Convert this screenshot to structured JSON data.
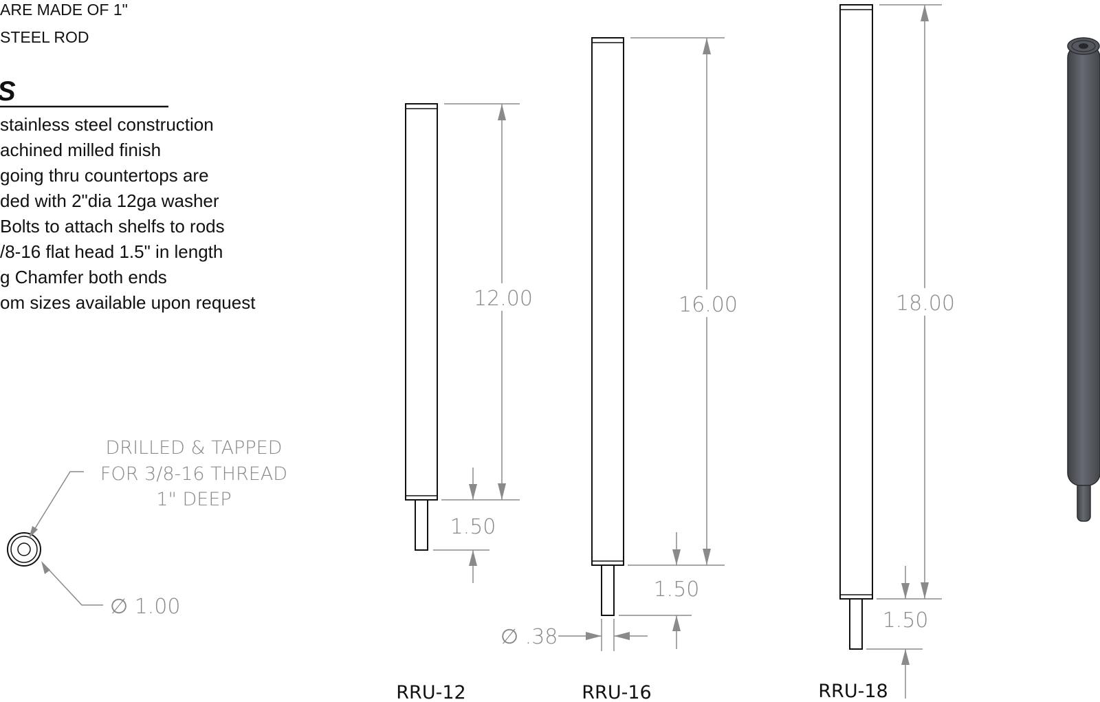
{
  "header_notes": [
    "ARE MADE OF 1\"",
    "STEEL ROD"
  ],
  "features_heading": "S",
  "features": [
    "stainless steel construction",
    "achined milled finish",
    " going thru countertops are",
    "ded with 2\"dia 12ga washer",
    "Bolts to attach shelfs to rods",
    "/8-16 flat head 1.5\" in length",
    "g Chamfer both ends",
    "om sizes available upon request"
  ],
  "end_view": {
    "callout_lines": [
      "DRILLED & TAPPED",
      "FOR 3/8-16 THREAD",
      "1\" DEEP"
    ],
    "diameter": "∅ 1.00"
  },
  "parts": [
    {
      "label": "RRU-12",
      "length": "12.00",
      "stud": "1.50"
    },
    {
      "label": "RRU-16",
      "length": "16.00",
      "stud": "1.50",
      "stud_diameter": "∅ .38"
    },
    {
      "label": "RRU-18",
      "length": "18.00",
      "stud": "1.50"
    }
  ],
  "colors": {
    "dimension": "#888888",
    "part_outline": "#111111",
    "render_body": "#5a5d63"
  }
}
